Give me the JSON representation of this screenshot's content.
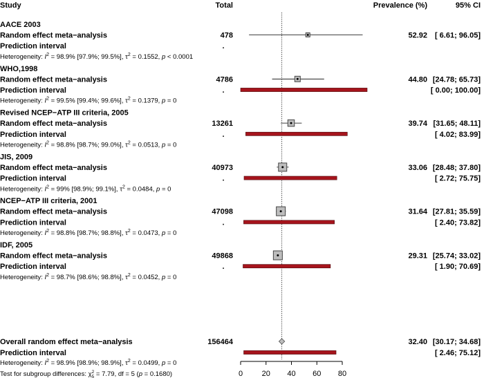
{
  "chart_data": {
    "type": "forest",
    "headers": {
      "study": "Study",
      "total": "Total",
      "prevalence": "Prevalence (%)",
      "ci": "95% CI"
    },
    "x_ticks": [
      0,
      20,
      40,
      60,
      80
    ],
    "xlim": [
      0,
      80
    ],
    "reference_line": 32.4,
    "subgroups": [
      {
        "name": "AACE 2003",
        "total": "478",
        "estimate": 52.92,
        "ci_low": 6.61,
        "ci_high": 96.05,
        "pi_low": null,
        "pi_high": null,
        "weight": 0.1,
        "prevalence_text": "52.92",
        "ci_text": "[ 6.61; 96.05]",
        "pi_text": "",
        "het": {
          "i2": "98.9%",
          "i2_ci": "[97.9%; 99.5%]",
          "tau2": "0.1552",
          "p": "< 0.0001"
        }
      },
      {
        "name": "WHO,1998",
        "total": "4786",
        "estimate": 44.8,
        "ci_low": 24.78,
        "ci_high": 65.73,
        "pi_low": 0.0,
        "pi_high": 100.0,
        "weight": 0.3,
        "prevalence_text": "44.80",
        "ci_text": "[24.78; 65.73]",
        "pi_text": "[ 0.00; 100.00]",
        "het": {
          "i2": "99.5%",
          "i2_ci": "[99.4%; 99.6%]",
          "tau2": "0.1379",
          "p": "= 0"
        }
      },
      {
        "name": "Revised NCEP−ATP III criteria, 2005",
        "total": "13261",
        "estimate": 39.74,
        "ci_low": 31.65,
        "ci_high": 48.11,
        "pi_low": 4.02,
        "pi_high": 83.99,
        "weight": 0.45,
        "prevalence_text": "39.74",
        "ci_text": "[31.65; 48.11]",
        "pi_text": "[ 4.02; 83.99]",
        "het": {
          "i2": "98.8%",
          "i2_ci": "[98.7%; 99.0%]",
          "tau2": "0.0513",
          "p": "= 0"
        }
      },
      {
        "name": "JIS, 2009",
        "total": "40973",
        "estimate": 33.06,
        "ci_low": 28.48,
        "ci_high": 37.8,
        "pi_low": 2.72,
        "pi_high": 75.75,
        "weight": 0.7,
        "prevalence_text": "33.06",
        "ci_text": "[28.48; 37.80]",
        "pi_text": "[ 2.72; 75.75]",
        "het": {
          "i2": "99%",
          "i2_ci": "[98.9%; 99.1%]",
          "tau2": "0.0484",
          "p": "= 0"
        }
      },
      {
        "name": "NCEP−ATP III criteria, 2001",
        "total": "47098",
        "estimate": 31.64,
        "ci_low": 27.81,
        "ci_high": 35.59,
        "pi_low": 2.4,
        "pi_high": 73.82,
        "weight": 0.8,
        "prevalence_text": "31.64",
        "ci_text": "[27.81; 35.59]",
        "pi_text": "[ 2.40; 73.82]",
        "het": {
          "i2": "98.8%",
          "i2_ci": "[98.7%; 98.8%]",
          "tau2": "0.0473",
          "p": "= 0"
        }
      },
      {
        "name": "IDF, 2005",
        "total": "49868",
        "estimate": 29.31,
        "ci_low": 25.74,
        "ci_high": 33.02,
        "pi_low": 1.9,
        "pi_high": 70.69,
        "weight": 0.8,
        "prevalence_text": "29.31",
        "ci_text": "[25.74; 33.02]",
        "pi_text": "[ 1.90; 70.69]",
        "het": {
          "i2": "98.7%",
          "i2_ci": "[98.6%; 98.8%]",
          "tau2": "0.0452",
          "p": "= 0"
        }
      }
    ],
    "overall": {
      "label": "Overall random effect meta−analysis",
      "total": "156464",
      "estimate": 32.4,
      "ci_low": 30.17,
      "ci_high": 34.68,
      "pi_low": 2.46,
      "pi_high": 75.12,
      "prevalence_text": "32.40",
      "ci_text": "[30.17; 34.68]",
      "pi_text": "[ 2.46; 75.12]",
      "het": {
        "i2": "98.9%",
        "i2_ci": "[98.9%; 98.9%]",
        "tau2": "0.0499",
        "p": "= 0"
      },
      "subgroup_test": {
        "chi2": "7.79",
        "df": "5",
        "p": "0.1680"
      }
    },
    "labels": {
      "random": "Random effect meta−analysis",
      "pi": "Prediction interval",
      "pi_dot": ".",
      "het_prefix": "Heterogeneity:",
      "subgroup_prefix": "Test for subgroup differences:"
    },
    "colors": {
      "pi_bar": "#a6141c",
      "box_fill": "#bdbdbd",
      "box_stroke": "#444444",
      "diamond_fill": "#bdbdbd"
    }
  }
}
